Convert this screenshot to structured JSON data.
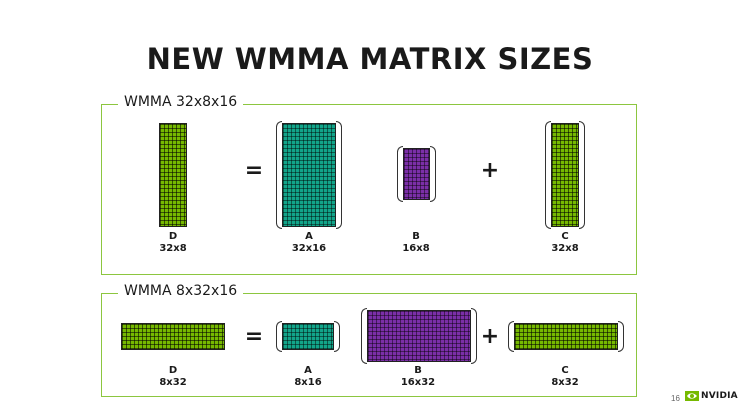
{
  "title": "NEW WMMA MATRIX SIZES",
  "panels": [
    {
      "label": "WMMA 32x8x16",
      "matrices": {
        "d": {
          "name": "D",
          "dims": "32x8"
        },
        "a": {
          "name": "A",
          "dims": "32x16"
        },
        "b": {
          "name": "B",
          "dims": "16x8"
        },
        "c": {
          "name": "C",
          "dims": "32x8"
        }
      },
      "ops": {
        "equals": "=",
        "plus": "+"
      }
    },
    {
      "label": "WMMA 8x32x16",
      "matrices": {
        "d": {
          "name": "D",
          "dims": "8x32"
        },
        "a": {
          "name": "A",
          "dims": "8x16"
        },
        "b": {
          "name": "B",
          "dims": "16x32"
        },
        "c": {
          "name": "C",
          "dims": "8x32"
        }
      },
      "ops": {
        "equals": "=",
        "plus": "+"
      }
    }
  ],
  "footer": {
    "page_number": "16",
    "logo_text": "NVIDIA"
  },
  "colors": {
    "green": "#76b900",
    "teal": "#12a58a",
    "purple": "#7b2fa8",
    "border": "#8cc63f"
  }
}
